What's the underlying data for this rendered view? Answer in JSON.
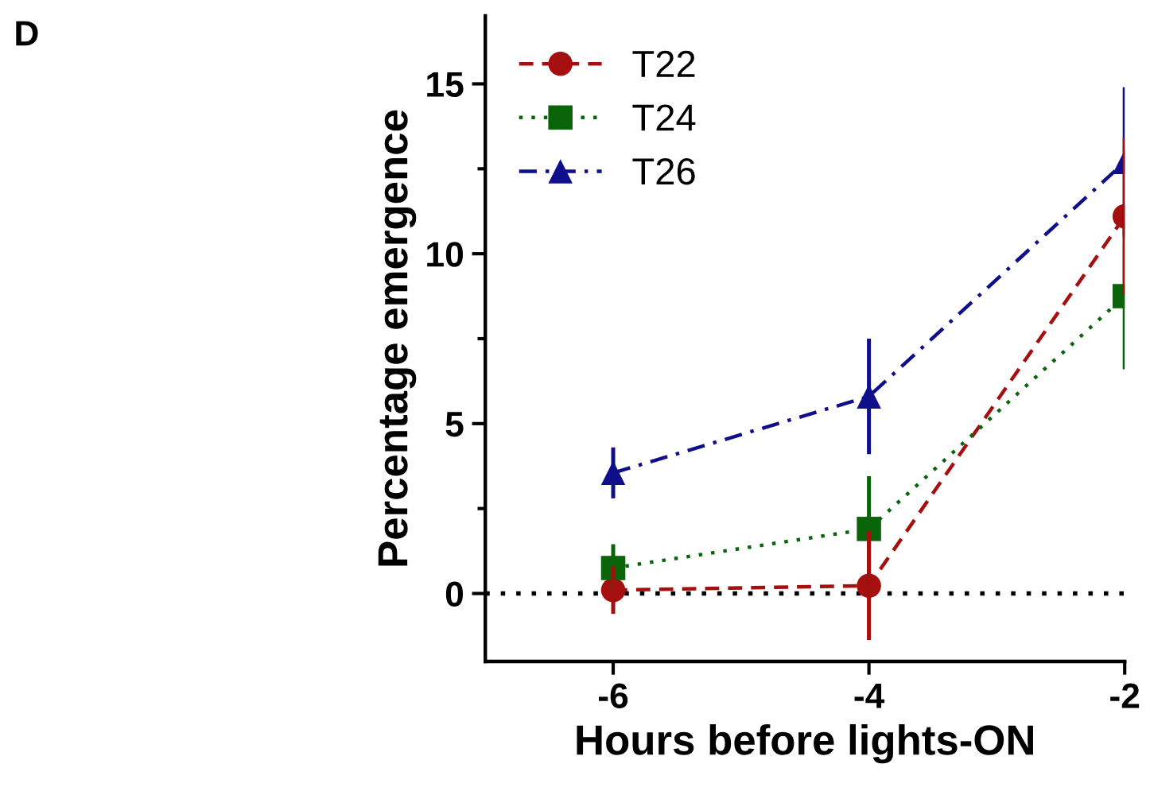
{
  "chart_data": {
    "type": "line",
    "xlabel": "Hours before lights-ON",
    "ylabel": "Percentage emergence",
    "annotations": [
      "D"
    ],
    "x": [
      -6,
      -4,
      -2
    ],
    "series": [
      {
        "name": "T22",
        "color": "#a50f0f",
        "values": [
          0.1,
          0.23,
          11.1
        ],
        "errors": [
          0.7,
          1.6,
          2.3
        ],
        "marker": "circle",
        "line_style": "dashed"
      },
      {
        "name": "T24",
        "color": "#0a640a",
        "values": [
          0.75,
          1.9,
          8.75
        ],
        "errors": [
          0.7,
          1.55,
          2.15
        ],
        "marker": "square",
        "line_style": "dotted"
      },
      {
        "name": "T26",
        "color": "#0f0f8c",
        "values": [
          3.55,
          5.8,
          12.7
        ],
        "errors": [
          0.75,
          1.7,
          2.2
        ],
        "marker": "triangle",
        "line_style": "dashdot"
      }
    ],
    "xlim": [
      -7,
      -2
    ],
    "xticks": [
      -6,
      -4,
      -2
    ],
    "ylim": [
      -2,
      17
    ],
    "yticks": [
      0,
      {
        "value": 2.5,
        "label": null
      },
      5,
      {
        "value": 7.5,
        "label": null
      },
      10,
      {
        "value": 12.5,
        "label": null
      },
      15
    ],
    "ref_lines": [
      {
        "axis": "y",
        "value": 0,
        "color": "#000000",
        "line_style": "dotted"
      }
    ],
    "grid": false,
    "legend": "top left"
  }
}
